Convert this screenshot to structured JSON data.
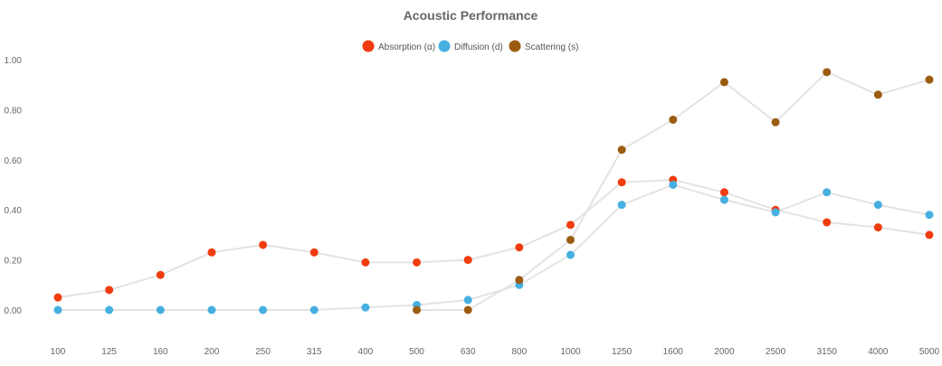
{
  "chart_data": {
    "type": "line",
    "title": "Acoustic Performance",
    "xlabel": "",
    "ylabel": "",
    "categories": [
      "100",
      "125",
      "160",
      "200",
      "250",
      "315",
      "400",
      "500",
      "630",
      "800",
      "1000",
      "1250",
      "1600",
      "2000",
      "2500",
      "3150",
      "4000",
      "5000"
    ],
    "ylim": [
      -0.1,
      1.05
    ],
    "yticks": [
      "0.00",
      "0.20",
      "0.40",
      "0.60",
      "0.80",
      "1.00"
    ],
    "ytick_values": [
      0,
      0.2,
      0.4,
      0.6,
      0.8,
      1.0
    ],
    "grid": false,
    "legend_position": "top-center",
    "line_color": "#e3e3e3",
    "series": [
      {
        "name": "Absorption (α)",
        "color": "#f03c0f",
        "values": [
          0.05,
          0.08,
          0.14,
          0.23,
          0.26,
          0.23,
          0.19,
          0.19,
          0.2,
          0.25,
          0.34,
          0.51,
          0.52,
          0.47,
          0.4,
          0.35,
          0.33,
          0.3
        ]
      },
      {
        "name": "Diffusion (d)",
        "color": "#45b0e0",
        "values": [
          0.0,
          0.0,
          0.0,
          0.0,
          0.0,
          0.0,
          0.01,
          0.02,
          0.04,
          0.1,
          0.22,
          0.42,
          0.5,
          0.44,
          0.39,
          0.47,
          0.42,
          0.38
        ]
      },
      {
        "name": "Scattering (s)",
        "color": "#9b5c10",
        "values": [
          null,
          null,
          null,
          null,
          null,
          null,
          null,
          0.0,
          0.0,
          0.12,
          0.28,
          0.64,
          0.76,
          0.91,
          0.75,
          0.95,
          0.86,
          0.92
        ]
      }
    ]
  }
}
